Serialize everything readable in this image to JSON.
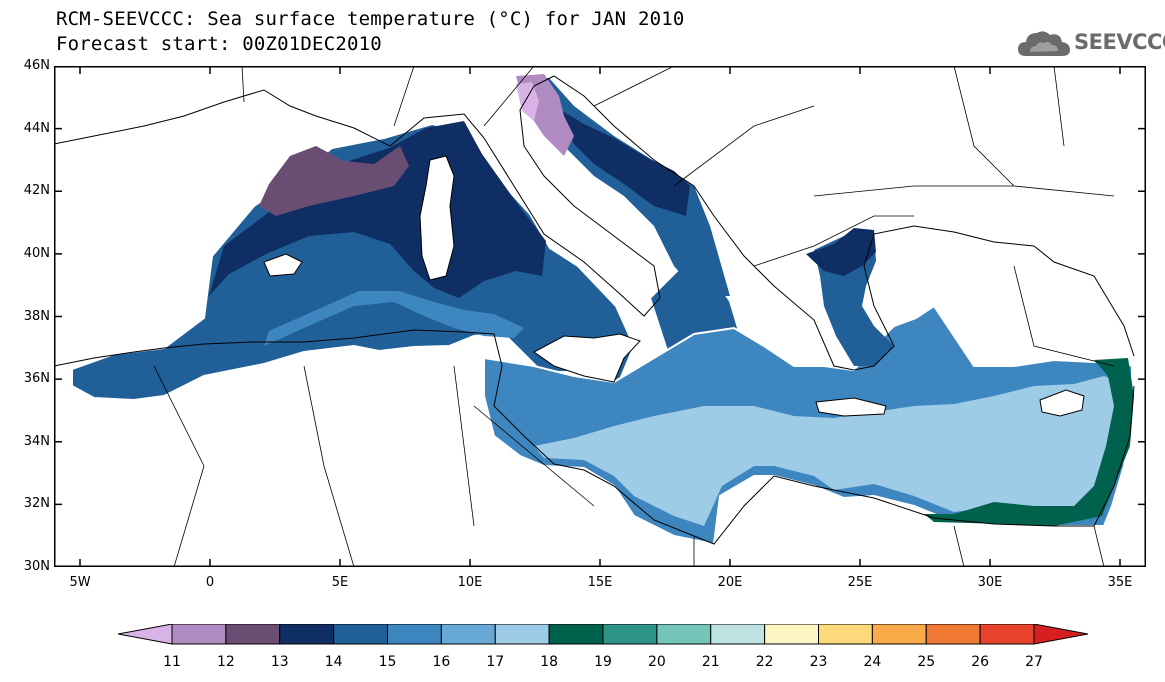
{
  "header": {
    "title_line1": "RCM-SEEVCCC: Sea surface temperature (°C) for JAN 2010",
    "title_line2": "Forecast start: 00Z01DEC2010"
  },
  "logo": {
    "text": "SEEVCCC",
    "icon": "cloud-icon",
    "color": "#6b6b6b"
  },
  "map": {
    "lon_range": [
      -6,
      36
    ],
    "lat_range": [
      30,
      46
    ],
    "lon_ticks": [
      {
        "value": -5,
        "label": "5W"
      },
      {
        "value": 0,
        "label": "0"
      },
      {
        "value": 5,
        "label": "5E"
      },
      {
        "value": 10,
        "label": "10E"
      },
      {
        "value": 15,
        "label": "15E"
      },
      {
        "value": 20,
        "label": "20E"
      },
      {
        "value": 25,
        "label": "25E"
      },
      {
        "value": 30,
        "label": "30E"
      },
      {
        "value": 35,
        "label": "35E"
      }
    ],
    "lat_ticks": [
      {
        "value": 30,
        "label": "30N"
      },
      {
        "value": 32,
        "label": "32N"
      },
      {
        "value": 34,
        "label": "34N"
      },
      {
        "value": 36,
        "label": "36N"
      },
      {
        "value": 38,
        "label": "38N"
      },
      {
        "value": 40,
        "label": "40N"
      },
      {
        "value": 42,
        "label": "42N"
      },
      {
        "value": 44,
        "label": "44N"
      },
      {
        "value": 46,
        "label": "46N"
      }
    ],
    "legend_labels": [
      "11",
      "12",
      "13",
      "14",
      "15",
      "16",
      "17",
      "18",
      "19",
      "20",
      "21",
      "22",
      "23",
      "24",
      "25",
      "26",
      "27"
    ],
    "legend_colors": [
      "#d9b3e6",
      "#b08bc2",
      "#6a4d73",
      "#0f2e63",
      "#215f99",
      "#3e86bf",
      "#68a8d6",
      "#9ecbe6",
      "#00614c",
      "#2f9488",
      "#73c4b9",
      "#bfe3e1",
      "#fdf5c2",
      "#fcd97a",
      "#f9ab4a",
      "#f07a34",
      "#e8432d",
      "#d61f1f"
    ]
  }
}
